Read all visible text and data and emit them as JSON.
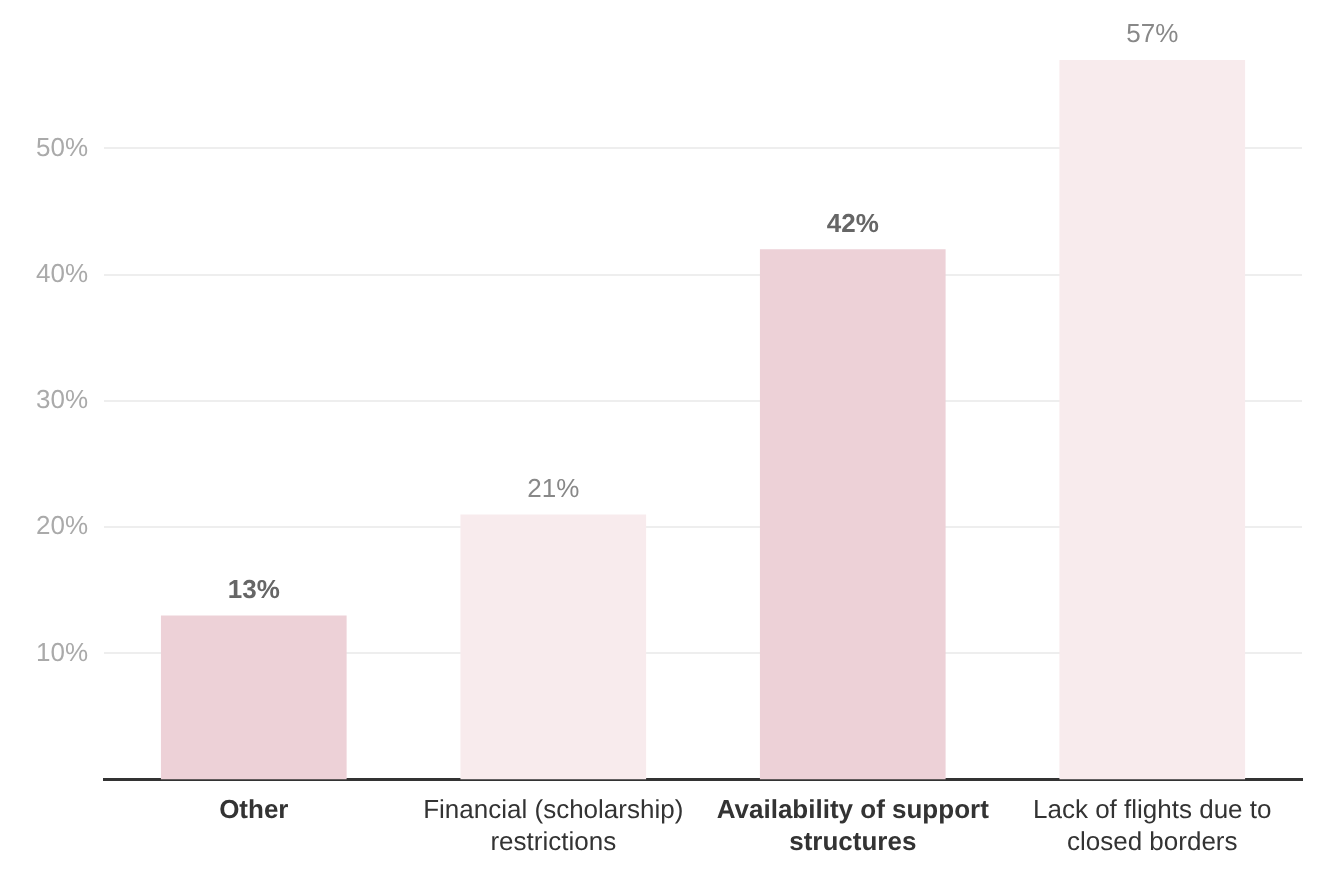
{
  "chart_data": {
    "type": "bar",
    "categories": [
      "Other",
      "Financial (scholarship) restrictions",
      "Availability of support structures",
      "Lack of flights due to closed borders"
    ],
    "values": [
      13,
      21,
      42,
      57
    ],
    "colors": [
      "#edd1d7",
      "#f8ebed",
      "#edd1d7",
      "#f8ebed"
    ],
    "ylim": [
      0,
      57
    ],
    "yticks": [
      {
        "value": 10,
        "label": "10%"
      },
      {
        "value": 20,
        "label": "20%"
      },
      {
        "value": 30,
        "label": "30%"
      },
      {
        "value": 40,
        "label": "40%"
      },
      {
        "value": 50,
        "label": "50%"
      }
    ],
    "value_labels": [
      "13%",
      "21%",
      "42%",
      "57%"
    ],
    "grid": "y"
  }
}
